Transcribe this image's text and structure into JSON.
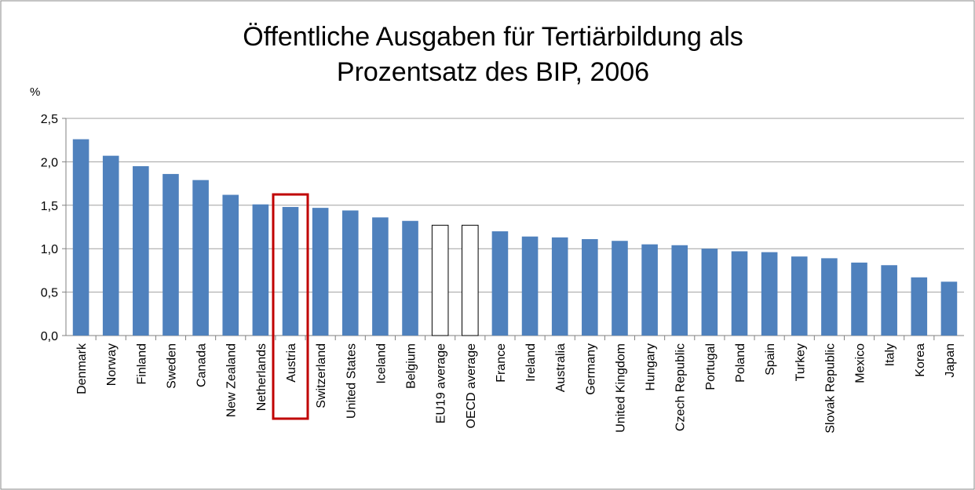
{
  "chart_data": {
    "type": "bar",
    "title": [
      "Öffentliche Ausgaben für Tertiärbildung als",
      "Prozentsatz des BIP, 2006"
    ],
    "y_label": "%",
    "categories": [
      "Denmark",
      "Norway",
      "Finland",
      "Sweden",
      "Canada",
      "New Zealand",
      "Netherlands",
      "Austria",
      "Switzerland",
      "United States",
      "Iceland",
      "Belgium",
      "EU19 average",
      "OECD average",
      "France",
      "Ireland",
      "Australia",
      "Germany",
      "United Kingdom",
      "Hungary",
      "Czech Republic",
      "Portugal",
      "Poland",
      "Spain",
      "Turkey",
      "Slovak Republic",
      "Mexico",
      "Italy",
      "Korea",
      "Japan"
    ],
    "values": [
      2.26,
      2.07,
      1.95,
      1.86,
      1.79,
      1.62,
      1.51,
      1.48,
      1.47,
      1.44,
      1.36,
      1.32,
      1.27,
      1.27,
      1.2,
      1.14,
      1.13,
      1.11,
      1.09,
      1.05,
      1.04,
      1.0,
      0.97,
      0.96,
      0.91,
      0.89,
      0.84,
      0.81,
      0.67,
      0.62
    ],
    "colors": [
      "#4f81bd",
      "#4f81bd",
      "#4f81bd",
      "#4f81bd",
      "#4f81bd",
      "#4f81bd",
      "#4f81bd",
      "#4f81bd",
      "#4f81bd",
      "#4f81bd",
      "#4f81bd",
      "#4f81bd",
      "#ffffff",
      "#ffffff",
      "#4f81bd",
      "#4f81bd",
      "#4f81bd",
      "#4f81bd",
      "#4f81bd",
      "#4f81bd",
      "#4f81bd",
      "#4f81bd",
      "#4f81bd",
      "#4f81bd",
      "#4f81bd",
      "#4f81bd",
      "#4f81bd",
      "#4f81bd",
      "#4f81bd",
      "#4f81bd"
    ],
    "ylim": [
      0,
      2.5
    ],
    "yticks": [
      {
        "value": 0,
        "label": "0,0"
      },
      {
        "value": 0.5,
        "label": "0,5"
      },
      {
        "value": 1,
        "label": "1,0"
      },
      {
        "value": 1.5,
        "label": "1,5"
      },
      {
        "value": 2,
        "label": "2,0"
      },
      {
        "value": 2.5,
        "label": "2,5"
      }
    ],
    "grid": true,
    "highlight": {
      "category_index": 7,
      "color": "#c00000"
    }
  }
}
